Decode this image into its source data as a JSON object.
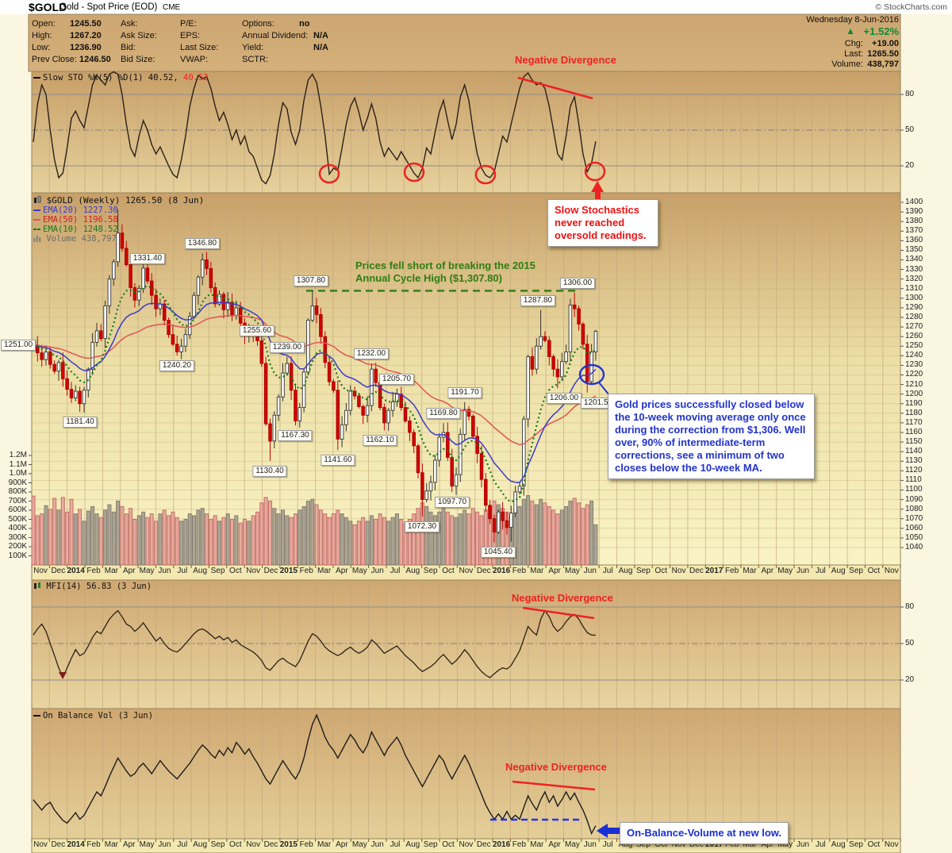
{
  "header": {
    "symbol": "$GOLD",
    "title": "Gold - Spot Price (EOD)",
    "exchange": "CME",
    "credit": "© StockCharts.com",
    "date": "Wednesday 8-Jun-2016",
    "up_arrow": "▲",
    "pct_change": "+1.52%",
    "chg_label": "Chg:",
    "chg": "+19.00",
    "last_label": "Last:",
    "last": "1265.50",
    "volume_label": "Volume:",
    "volume": "438,797"
  },
  "quote": {
    "open_label": "Open:",
    "open": "1245.50",
    "high_label": "High:",
    "high": "1267.20",
    "low_label": "Low:",
    "low": "1236.90",
    "prev_close_label": "Prev Close:",
    "prev_close": "1246.50",
    "ask_label": "Ask:",
    "ask": "",
    "ask_size_label": "Ask Size:",
    "ask_size": "",
    "bid_label": "Bid:",
    "bid": "",
    "bid_size_label": "Bid Size:",
    "bid_size": "",
    "pe_label": "P/E:",
    "pe": "",
    "eps_label": "EPS:",
    "eps": "",
    "last_size_label": "Last Size:",
    "last_size": "",
    "vwap_label": "VWAP:",
    "vwap": "",
    "options_label": "Options:",
    "options": "no",
    "dividend_label": "Annual Dividend:",
    "dividend": "N/A",
    "yield_label": "Yield:",
    "yield": "N/A",
    "sctr_label": "SCTR:",
    "sctr": ""
  },
  "legends": {
    "sto_text": "Slow STO %K(5) %D(1) 40.52,",
    "sto_value2": "40.52",
    "main": "$GOLD (Weekly) 1265.50 (8 Jun)",
    "ema20": "EMA(20) 1227.30",
    "ema50": "EMA(50) 1196.58",
    "ema10": "EMA(10) 1248.52",
    "volume": "Volume 438,797",
    "mfi": "MFI(14) 56.83 (3 Jun)",
    "obv": "On Balance Vol (3 Jun)"
  },
  "annotations": {
    "sto_divergence": "Negative Divergence",
    "sto_box": "Slow Stochastics never reached oversold readings.",
    "cycle_line1": "Prices fell short of breaking the 2015",
    "cycle_line2": "Annual Cycle High ($1,307.80)",
    "gold_box": "Gold prices successfully closed below the 10-week moving average only once during the correction from $1,306. Well over, 90% of intermediate-term corrections, see a minimum of two closes below the 10-week MA.",
    "mfi_divergence": "Negative Divergence",
    "obv_divergence": "Negative Divergence",
    "obv_box": "On-Balance-Volume at new low.",
    "sto_circle_weeks": [
      70,
      90,
      107,
      131
    ]
  },
  "axes": {
    "months": [
      "Nov",
      "Dec",
      "2014",
      "Feb",
      "Mar",
      "Apr",
      "May",
      "Jun",
      "Jul",
      "Aug",
      "Sep",
      "Oct",
      "Nov",
      "Dec",
      "2015",
      "Feb",
      "Mar",
      "Apr",
      "May",
      "Jun",
      "Jul",
      "Aug",
      "Sep",
      "Oct",
      "Nov",
      "Dec",
      "2016",
      "Feb",
      "Mar",
      "Apr",
      "May",
      "Jun",
      "Jul",
      "Aug",
      "Sep",
      "Oct",
      "Nov",
      "Dec",
      "2017",
      "Feb",
      "Mar",
      "Apr",
      "May",
      "Jun",
      "Jul",
      "Aug",
      "Sep",
      "Oct",
      "Nov"
    ],
    "price_ticks": [
      1400,
      1390,
      1380,
      1370,
      1360,
      1350,
      1340,
      1330,
      1320,
      1310,
      1300,
      1290,
      1280,
      1270,
      1260,
      1250,
      1240,
      1230,
      1220,
      1210,
      1200,
      1190,
      1180,
      1170,
      1160,
      1150,
      1140,
      1130,
      1120,
      1110,
      1100,
      1090,
      1080,
      1070,
      1060,
      1050,
      1040
    ],
    "volume_ticks": [
      "1.2M",
      "1.1M",
      "1.0M",
      "900K",
      "800K",
      "700K",
      "600K",
      "500K",
      "400K",
      "300K",
      "200K",
      "100K"
    ],
    "oscillator_ticks": [
      80,
      50,
      20
    ]
  },
  "colors": {
    "candle_down": "#d40000",
    "candle_up": "#ffffff",
    "vol_up": "#a9a294",
    "vol_down": "#e8a7a0",
    "ema10": "#1a7a1a",
    "ema20": "#3a3acc",
    "ema50": "#e05555",
    "annotation_red": "#ee2222",
    "annotation_green": "#2e7d12",
    "annotation_blue": "#2233cc",
    "pct_green": "#118833"
  },
  "chart_data": [
    {
      "id": "slow_sto",
      "type": "line",
      "name": "Slow STO %K(5) %D(1)",
      "current_values": [
        40.52,
        40.52
      ],
      "ylim": [
        0,
        100
      ],
      "gridlines": [
        80,
        50,
        20
      ],
      "x_interval": "weekly",
      "x_range": "Nov 2013 - 8 Jun 2016",
      "values": [
        40,
        72,
        88,
        80,
        50,
        25,
        10,
        14,
        35,
        60,
        66,
        58,
        52,
        70,
        88,
        96,
        92,
        88,
        97,
        99,
        97,
        80,
        55,
        35,
        28,
        45,
        58,
        50,
        38,
        30,
        36,
        28,
        20,
        13,
        10,
        25,
        45,
        70,
        85,
        96,
        93,
        95,
        85,
        70,
        58,
        65,
        55,
        42,
        50,
        38,
        45,
        32,
        28,
        18,
        8,
        5,
        12,
        30,
        55,
        73,
        68,
        48,
        38,
        50,
        75,
        92,
        97,
        90,
        70,
        45,
        13,
        18,
        16,
        35,
        55,
        70,
        77,
        65,
        50,
        60,
        72,
        60,
        40,
        28,
        35,
        30,
        25,
        32,
        26,
        20,
        14,
        10,
        18,
        35,
        30,
        48,
        65,
        75,
        58,
        42,
        55,
        78,
        88,
        75,
        50,
        30,
        18,
        12,
        10,
        15,
        30,
        45,
        40,
        55,
        70,
        85,
        95,
        98,
        92,
        88,
        90,
        85,
        70,
        50,
        30,
        25,
        45,
        70,
        78,
        55,
        30,
        15,
        22,
        40.52
      ]
    },
    {
      "id": "gold_weekly",
      "type": "candlestick",
      "name": "$GOLD (Weekly)",
      "last": 1265.5,
      "ylim": [
        1040,
        1400
      ],
      "x_interval": "weekly",
      "x_range": "Nov 2013 - 8 Jun 2016",
      "closes": [
        1251,
        1243,
        1236,
        1244,
        1231,
        1224,
        1233,
        1216,
        1205,
        1196,
        1203,
        1190,
        1204,
        1226,
        1254,
        1266,
        1258,
        1292,
        1320,
        1338,
        1368,
        1352,
        1335,
        1311,
        1298,
        1310,
        1331.4,
        1318,
        1303,
        1289,
        1294,
        1277,
        1262,
        1252,
        1244,
        1250,
        1262,
        1281,
        1303,
        1322,
        1340,
        1331,
        1311,
        1294,
        1304,
        1288,
        1296,
        1282,
        1290,
        1274,
        1262,
        1270,
        1261,
        1255.6,
        1232,
        1169,
        1151,
        1178,
        1197,
        1222,
        1232,
        1204,
        1172,
        1186,
        1223,
        1277,
        1292,
        1283,
        1260,
        1233,
        1213,
        1204,
        1153,
        1168,
        1183,
        1203,
        1198,
        1187,
        1178,
        1188,
        1226,
        1212,
        1186,
        1170,
        1183,
        1192,
        1200,
        1186,
        1172,
        1160,
        1146,
        1118,
        1090,
        1099,
        1108,
        1131,
        1155,
        1160,
        1134,
        1104,
        1116,
        1158,
        1184,
        1177,
        1156,
        1138,
        1111,
        1084,
        1070,
        1056,
        1077,
        1068,
        1061,
        1076,
        1098,
        1104,
        1174,
        1239,
        1226,
        1250,
        1260,
        1256,
        1239,
        1226,
        1218,
        1234,
        1244,
        1293,
        1289,
        1273,
        1252,
        1213,
        1244,
        1265.5
      ],
      "wick_highs": {
        "20": 1392,
        "26": 1336,
        "40": 1346.8,
        "53": 1259,
        "60": 1239,
        "66": 1307.8,
        "80": 1232,
        "86": 1205.7,
        "97": 1169.8,
        "102": 1191.7,
        "120": 1287.8,
        "128": 1306,
        "133": 1267.2
      },
      "wick_lows": {
        "11": 1181.4,
        "34": 1240.2,
        "56": 1130.4,
        "62": 1167.3,
        "72": 1141.6,
        "83": 1162.1,
        "92": 1072.3,
        "99": 1097.7,
        "109": 1045.4,
        "113": 1046,
        "124": 1206,
        "131": 1201.5
      },
      "volumes_k": [
        755,
        540,
        560,
        650,
        610,
        730,
        600,
        740,
        580,
        720,
        560,
        610,
        480,
        590,
        640,
        560,
        520,
        600,
        660,
        580,
        700,
        640,
        560,
        620,
        500,
        540,
        580,
        520,
        560,
        480,
        560,
        600,
        540,
        580,
        520,
        480,
        500,
        560,
        540,
        600,
        620,
        560,
        500,
        540,
        480,
        520,
        560,
        500,
        540,
        460,
        500,
        480,
        540,
        580,
        680,
        740,
        700,
        620,
        560,
        600,
        540,
        520,
        560,
        600,
        640,
        700,
        720,
        660,
        600,
        560,
        520,
        560,
        600,
        560,
        520,
        480,
        440,
        480,
        520,
        480,
        540,
        500,
        560,
        520,
        480,
        520,
        560,
        500,
        460,
        500,
        560,
        620,
        680,
        640,
        580,
        540,
        580,
        620,
        580,
        540,
        520,
        560,
        600,
        560,
        620,
        580,
        540,
        600,
        640,
        700,
        660,
        620,
        580,
        540,
        600,
        640,
        720,
        760,
        700,
        660,
        720,
        680,
        640,
        600,
        560,
        600,
        640,
        700,
        730,
        680,
        620,
        660,
        700,
        440
      ],
      "volume_ylim_k": [
        0,
        1300
      ],
      "overlays": [
        {
          "name": "EMA(20)",
          "value": 1227.3,
          "color": "#3a3acc",
          "style": "solid"
        },
        {
          "name": "EMA(50)",
          "value": 1196.58,
          "color": "#e05555",
          "style": "solid"
        },
        {
          "name": "EMA(10)",
          "value": 1248.52,
          "color": "#1a7a1a",
          "style": "dotted"
        }
      ],
      "price_labels": [
        {
          "text": "1251.00",
          "week": 0,
          "value": 1251,
          "side": "left",
          "dx": 0
        },
        {
          "text": "1181.40",
          "week": 11,
          "value": 1181.4,
          "side": "low",
          "dx": 0
        },
        {
          "text": "1331.40",
          "week": 26,
          "value": 1331.4,
          "side": "high",
          "dx": 5
        },
        {
          "text": "1240.20",
          "week": 34,
          "value": 1240.2,
          "side": "low",
          "dx": 0
        },
        {
          "text": "1346.80",
          "week": 40,
          "value": 1346.8,
          "side": "high",
          "dx": 0
        },
        {
          "text": "1255.60",
          "week": 53,
          "value": 1255.6,
          "side": "high",
          "dx": 0
        },
        {
          "text": "1130.40",
          "week": 56,
          "value": 1130.4,
          "side": "low",
          "dx": 0
        },
        {
          "text": "1239.00",
          "week": 60,
          "value": 1239,
          "side": "high",
          "dx": 0
        },
        {
          "text": "1167.30",
          "week": 62,
          "value": 1167.3,
          "side": "low",
          "dx": 0
        },
        {
          "text": "1307.80",
          "week": 66,
          "value": 1307.8,
          "side": "high",
          "dx": -2
        },
        {
          "text": "1141.60",
          "week": 72,
          "value": 1141.6,
          "side": "low",
          "dx": 0
        },
        {
          "text": "1232.00",
          "week": 80,
          "value": 1232,
          "side": "high",
          "dx": 0
        },
        {
          "text": "1162.10",
          "week": 83,
          "value": 1162.1,
          "side": "low",
          "dx": -5
        },
        {
          "text": "1205.70",
          "week": 86,
          "value": 1205.7,
          "side": "high",
          "dx": 0
        },
        {
          "text": "1072.30",
          "week": 92,
          "value": 1072.3,
          "side": "low",
          "dx": 0
        },
        {
          "text": "1169.80",
          "week": 97,
          "value": 1169.8,
          "side": "high",
          "dx": 0
        },
        {
          "text": "1097.70",
          "week": 99,
          "value": 1097.7,
          "side": "low",
          "dx": 0
        },
        {
          "text": "1191.70",
          "week": 102,
          "value": 1191.7,
          "side": "high",
          "dx": 0
        },
        {
          "text": "1045.40",
          "week": 109,
          "value": 1045.4,
          "side": "low",
          "dx": 5
        },
        {
          "text": "1287.80",
          "week": 120,
          "value": 1287.8,
          "side": "high",
          "dx": -4
        },
        {
          "text": "1206.00",
          "week": 124,
          "value": 1206,
          "side": "low",
          "dx": 8
        },
        {
          "text": "1306.00",
          "week": 128,
          "value": 1306,
          "side": "high",
          "dx": 4
        },
        {
          "text": "1201.50",
          "week": 131,
          "value": 1201.5,
          "side": "low",
          "dx": 14
        }
      ]
    },
    {
      "id": "mfi",
      "type": "line",
      "name": "MFI(14)",
      "current": 56.83,
      "as_of": "3 Jun",
      "ylim": [
        0,
        100
      ],
      "gridlines": [
        80,
        50,
        20
      ],
      "values": [
        57,
        62,
        66,
        60,
        50,
        40,
        30,
        22,
        30,
        38,
        45,
        40,
        42,
        48,
        55,
        60,
        58,
        64,
        70,
        74,
        77,
        72,
        66,
        64,
        60,
        63,
        67,
        62,
        57,
        52,
        55,
        50,
        46,
        44,
        43,
        46,
        50,
        54,
        58,
        61,
        62,
        60,
        57,
        54,
        56,
        53,
        55,
        51,
        53,
        49,
        47,
        45,
        43,
        40,
        36,
        30,
        28,
        32,
        36,
        38,
        35,
        33,
        31,
        36,
        44,
        52,
        58,
        56,
        52,
        47,
        44,
        42,
        40,
        42,
        45,
        47,
        44,
        42,
        44,
        47,
        53,
        50,
        46,
        42,
        44,
        46,
        48,
        44,
        40,
        37,
        34,
        30,
        27,
        29,
        31,
        34,
        38,
        41,
        37,
        33,
        36,
        40,
        45,
        41,
        36,
        31,
        27,
        24,
        22,
        25,
        28,
        30,
        29,
        32,
        38,
        44,
        54,
        64,
        60,
        57,
        70,
        77,
        72,
        64,
        60,
        63,
        68,
        72,
        74,
        70,
        64,
        59,
        57,
        56.83
      ]
    },
    {
      "id": "obv",
      "type": "line",
      "name": "On Balance Vol",
      "as_of": "3 Jun",
      "note": "no numeric axis shown; values normalized 0-100",
      "values": [
        30,
        26,
        22,
        26,
        28,
        22,
        18,
        14,
        12,
        16,
        20,
        15,
        18,
        24,
        30,
        36,
        33,
        40,
        48,
        55,
        62,
        57,
        52,
        48,
        50,
        55,
        58,
        54,
        50,
        55,
        60,
        56,
        52,
        49,
        46,
        50,
        54,
        58,
        63,
        68,
        72,
        69,
        65,
        62,
        68,
        64,
        70,
        66,
        74,
        70,
        65,
        69,
        63,
        58,
        52,
        46,
        42,
        48,
        54,
        60,
        55,
        50,
        46,
        52,
        62,
        76,
        88,
        95,
        87,
        78,
        72,
        68,
        62,
        68,
        74,
        80,
        76,
        70,
        66,
        72,
        82,
        76,
        70,
        64,
        70,
        74,
        78,
        72,
        64,
        58,
        52,
        46,
        40,
        46,
        52,
        58,
        64,
        60,
        52,
        46,
        52,
        58,
        64,
        58,
        50,
        42,
        34,
        26,
        20,
        15,
        19,
        15,
        21,
        15,
        18,
        15,
        24,
        33,
        27,
        22,
        30,
        36,
        28,
        33,
        25,
        30,
        36,
        30,
        35,
        28,
        22,
        14,
        4,
        10
      ]
    }
  ]
}
